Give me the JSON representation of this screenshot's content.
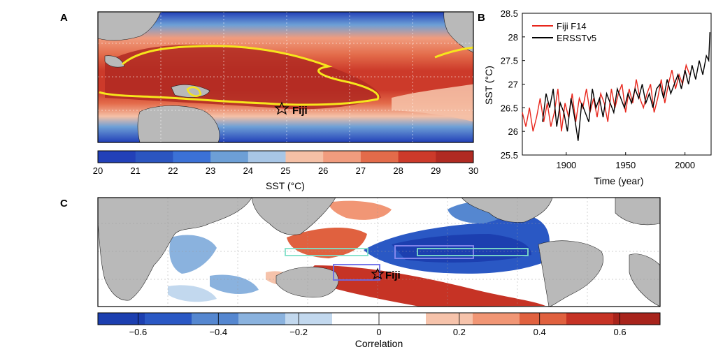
{
  "panel_a": {
    "label": "A",
    "site_label": "Fiji",
    "colorbar": {
      "label": "SST (°C)",
      "ticks": [
        "20",
        "21",
        "22",
        "23",
        "24",
        "25",
        "26",
        "27",
        "28",
        "29",
        "30"
      ],
      "colors": [
        "#2240b8",
        "#2b55c0",
        "#3b71d6",
        "#6d9fd6",
        "#a8c6e6",
        "#f5c0a6",
        "#f19c7e",
        "#e36b4a",
        "#cc3a2a",
        "#b02a22"
      ]
    },
    "contour_color": "#f6e61c"
  },
  "panel_b": {
    "label": "B",
    "chart_data": {
      "type": "line",
      "xlabel": "Time (year)",
      "ylabel": "SST (°C)",
      "xlim": [
        1863,
        2022
      ],
      "ylim": [
        25.5,
        28.5
      ],
      "xticks": [
        "1900",
        "1950",
        "2000"
      ],
      "yticks": [
        "25.5",
        "26",
        "26.5",
        "27",
        "27.5",
        "28",
        "28.5"
      ],
      "legend_position": "top-left",
      "series": [
        {
          "name": "Fiji F14",
          "color": "#e8261c",
          "x": [
            1863,
            1866,
            1869,
            1872,
            1875,
            1878,
            1881,
            1884,
            1887,
            1890,
            1893,
            1896,
            1899,
            1902,
            1905,
            1908,
            1911,
            1914,
            1917,
            1920,
            1923,
            1926,
            1929,
            1932,
            1935,
            1938,
            1941,
            1944,
            1947,
            1950,
            1953,
            1956,
            1959,
            1962,
            1965,
            1968,
            1971,
            1974,
            1977,
            1980,
            1983,
            1986,
            1989,
            1992,
            1995,
            1998,
            2001,
            2004
          ],
          "y": [
            26.4,
            26.1,
            26.5,
            26.0,
            26.3,
            26.7,
            26.2,
            26.6,
            26.1,
            26.4,
            26.9,
            26.0,
            26.6,
            26.3,
            26.8,
            26.2,
            26.7,
            26.5,
            26.9,
            26.4,
            26.7,
            26.3,
            26.8,
            26.6,
            26.2,
            26.9,
            26.5,
            26.8,
            27.0,
            26.4,
            26.9,
            26.6,
            27.1,
            26.7,
            26.5,
            26.8,
            27.0,
            26.4,
            26.7,
            27.1,
            26.6,
            27.0,
            27.3,
            26.9,
            27.2,
            27.0,
            27.4,
            27.2
          ]
        },
        {
          "name": "ERSSTv5",
          "color": "#000000",
          "x": [
            1880,
            1883,
            1886,
            1889,
            1892,
            1895,
            1898,
            1901,
            1904,
            1907,
            1910,
            1913,
            1916,
            1919,
            1922,
            1925,
            1928,
            1931,
            1934,
            1937,
            1940,
            1943,
            1946,
            1949,
            1952,
            1955,
            1958,
            1961,
            1964,
            1967,
            1970,
            1973,
            1976,
            1979,
            1982,
            1985,
            1988,
            1991,
            1994,
            1997,
            2000,
            2003,
            2006,
            2009,
            2012,
            2015,
            2018,
            2020,
            2021
          ],
          "y": [
            26.2,
            26.8,
            26.5,
            26.9,
            26.1,
            26.6,
            26.4,
            26.0,
            26.7,
            26.3,
            25.8,
            26.6,
            26.4,
            26.2,
            26.9,
            26.5,
            26.7,
            26.3,
            26.8,
            26.6,
            26.4,
            26.9,
            26.7,
            26.5,
            26.8,
            26.6,
            26.9,
            26.7,
            27.0,
            26.6,
            26.8,
            26.5,
            26.9,
            27.0,
            26.7,
            27.1,
            26.8,
            27.0,
            27.2,
            26.9,
            27.3,
            27.0,
            27.4,
            27.1,
            27.5,
            27.2,
            27.6,
            27.5,
            28.1
          ]
        }
      ]
    }
  },
  "panel_c": {
    "label": "C",
    "site_label": "Fiji",
    "colorbar": {
      "label": "Correlation",
      "ticks": [
        "−0.6",
        "−0.4",
        "−0.2",
        "0",
        "0.2",
        "0.4",
        "0.6"
      ],
      "colors": [
        "#1c3fb0",
        "#2a58c4",
        "#5587d0",
        "#8ab2de",
        "#c2d8ee",
        "#ffffff",
        "#ffffff",
        "#f6c3ab",
        "#f19675",
        "#e0613f",
        "#c63325",
        "#a8241c"
      ]
    }
  }
}
